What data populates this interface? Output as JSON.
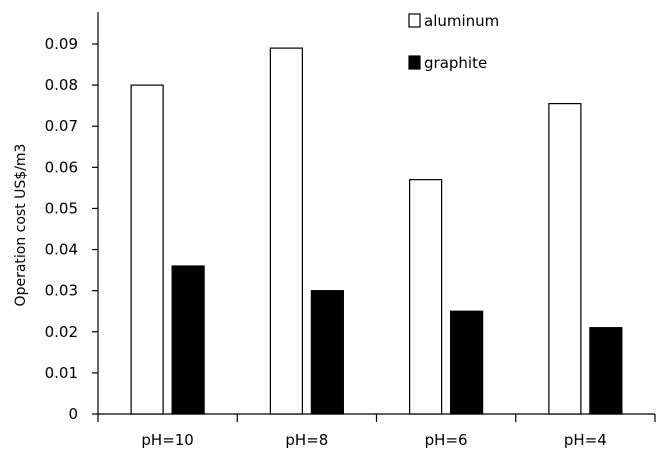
{
  "chart_data": {
    "type": "bar",
    "title": "",
    "xlabel": "",
    "ylabel": "Operation cost US$/m3",
    "categories": [
      "pH=10",
      "pH=8",
      "pH=6",
      "pH=4"
    ],
    "series": [
      {
        "name": "aluminum",
        "values": [
          0.08,
          0.089,
          0.057,
          0.0755
        ],
        "fill": "#ffffff",
        "stroke": "#000000"
      },
      {
        "name": "graphite",
        "values": [
          0.036,
          0.03,
          0.025,
          0.021
        ],
        "fill": "#000000",
        "stroke": "#000000"
      }
    ],
    "ylim": [
      0,
      0.09
    ],
    "yticks": [
      "0",
      "0.01",
      "0.02",
      "0.03",
      "0.04",
      "0.05",
      "0.06",
      "0.07",
      "0.08",
      "0.09"
    ],
    "grid": false,
    "legend_position": "top-right"
  }
}
